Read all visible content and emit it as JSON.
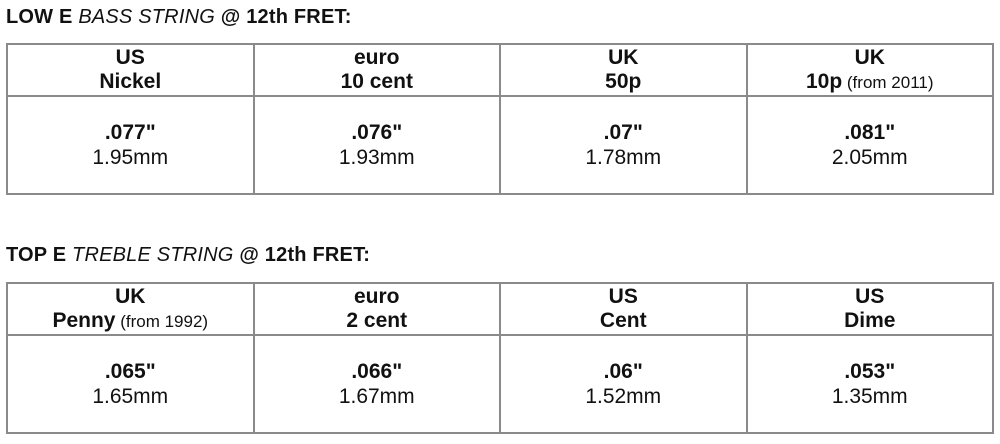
{
  "sections": [
    {
      "title_prefix": "LOW E ",
      "title_italic": "BASS STRING",
      "title_suffix": " @ 12th FRET:",
      "coins": [
        {
          "line1": "US",
          "line2": "Nickel",
          "note": "",
          "inch": ".077\"",
          "mm": "1.95mm"
        },
        {
          "line1": "euro",
          "line2": "10 cent",
          "note": "",
          "inch": ".076\"",
          "mm": "1.93mm"
        },
        {
          "line1": "UK",
          "line2": "50p",
          "note": "",
          "inch": ".07\"",
          "mm": "1.78mm"
        },
        {
          "line1": "UK",
          "line2": "10p",
          "note": " (from 2011)",
          "inch": ".081\"",
          "mm": "2.05mm"
        }
      ]
    },
    {
      "title_prefix": "TOP E ",
      "title_italic": "TREBLE STRING",
      "title_suffix": " @ 12th FRET:",
      "coins": [
        {
          "line1": "UK",
          "line2": "Penny",
          "note": " (from 1992)",
          "inch": ".065\"",
          "mm": "1.65mm"
        },
        {
          "line1": "euro",
          "line2": "2 cent",
          "note": "",
          "inch": ".066\"",
          "mm": "1.67mm"
        },
        {
          "line1": "US",
          "line2": "Cent",
          "note": "",
          "inch": ".06\"",
          "mm": "1.52mm"
        },
        {
          "line1": "US",
          "line2": "Dime",
          "note": "",
          "inch": ".053\"",
          "mm": "1.35mm"
        }
      ]
    }
  ]
}
